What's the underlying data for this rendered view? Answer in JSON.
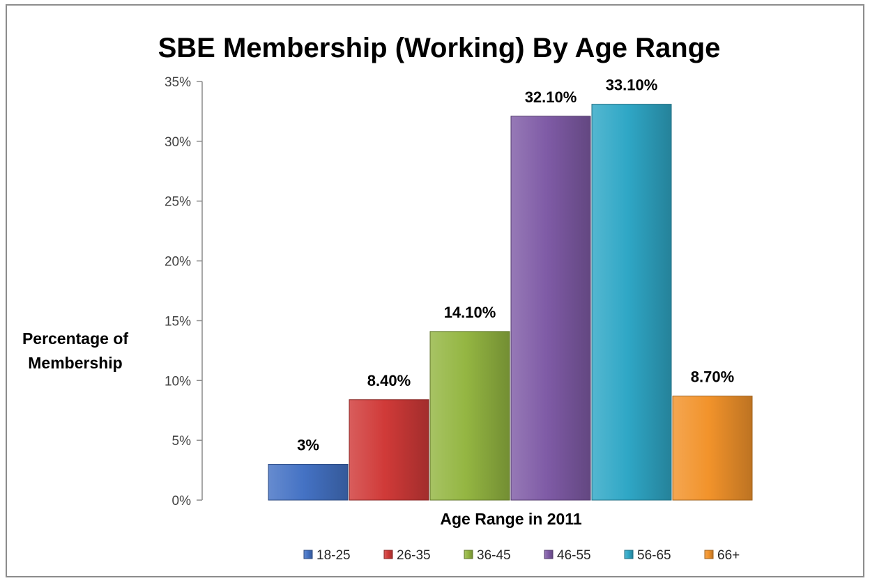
{
  "chart_data": {
    "type": "bar",
    "title": "SBE Membership (Working) By Age Range",
    "xlabel": "Age Range in 2011",
    "ylabel_lines": [
      "Percentage of",
      "Membership"
    ],
    "categories": [
      "18-25",
      "26-35",
      "36-45",
      "46-55",
      "56-65",
      "66+"
    ],
    "values": [
      3.0,
      8.4,
      14.1,
      32.1,
      33.1,
      8.7
    ],
    "data_labels": [
      "3%",
      "8.40%",
      "14.10%",
      "32.10%",
      "33.10%",
      "8.70%"
    ],
    "colors": [
      "#4472C4",
      "#D03A38",
      "#94B642",
      "#7F5BA6",
      "#2FA7C6",
      "#F2932B"
    ],
    "ylim": [
      0,
      35
    ],
    "yticks": [
      0,
      5,
      10,
      15,
      20,
      25,
      30,
      35
    ],
    "ytick_labels": [
      "0%",
      "5%",
      "10%",
      "15%",
      "20%",
      "25%",
      "30%",
      "35%"
    ],
    "legend": {
      "placement": "bottom",
      "entries": [
        "18-25",
        "26-35",
        "36-45",
        "46-55",
        "56-65",
        "66+"
      ]
    },
    "grid": false
  }
}
